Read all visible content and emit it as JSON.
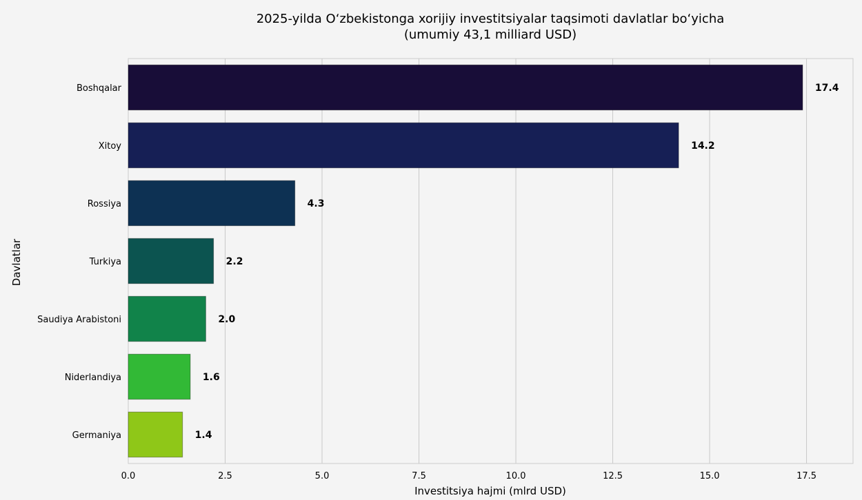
{
  "chart_data": {
    "type": "bar",
    "orientation": "horizontal",
    "title": "2025-yilda O‘zbekistonga xorijiy investitsiyalar taqsimoti davlatlar bo‘yicha",
    "subtitle": "(umumiy 43,1 milliard USD)",
    "xlabel": "Investitsiya hajmi (mlrd USD)",
    "ylabel": "Davlatlar",
    "categories": [
      "Boshqalar",
      "Xitoy",
      "Rossiya",
      "Turkiya",
      "Saudiya Arabistoni",
      "Niderlandiya",
      "Germaniya"
    ],
    "values": [
      17.4,
      14.2,
      4.3,
      2.2,
      2.0,
      1.6,
      1.4
    ],
    "value_labels": [
      "17.4",
      "14.2",
      "4.3",
      "2.2",
      "2.0",
      "1.6",
      "1.4"
    ],
    "colors": [
      "#180d38",
      "#161f55",
      "#0d3153",
      "#0c5450",
      "#11834a",
      "#32b936",
      "#8fc718"
    ],
    "xlim": [
      0,
      18.7
    ],
    "xticks": [
      0,
      2.5,
      5,
      7.5,
      10,
      12.5,
      15,
      17.5
    ],
    "xtick_labels": [
      "0.0",
      "2.5",
      "5.0",
      "7.5",
      "10.0",
      "12.5",
      "15.0",
      "17.5"
    ],
    "grid": "vertical",
    "legend": "none"
  }
}
